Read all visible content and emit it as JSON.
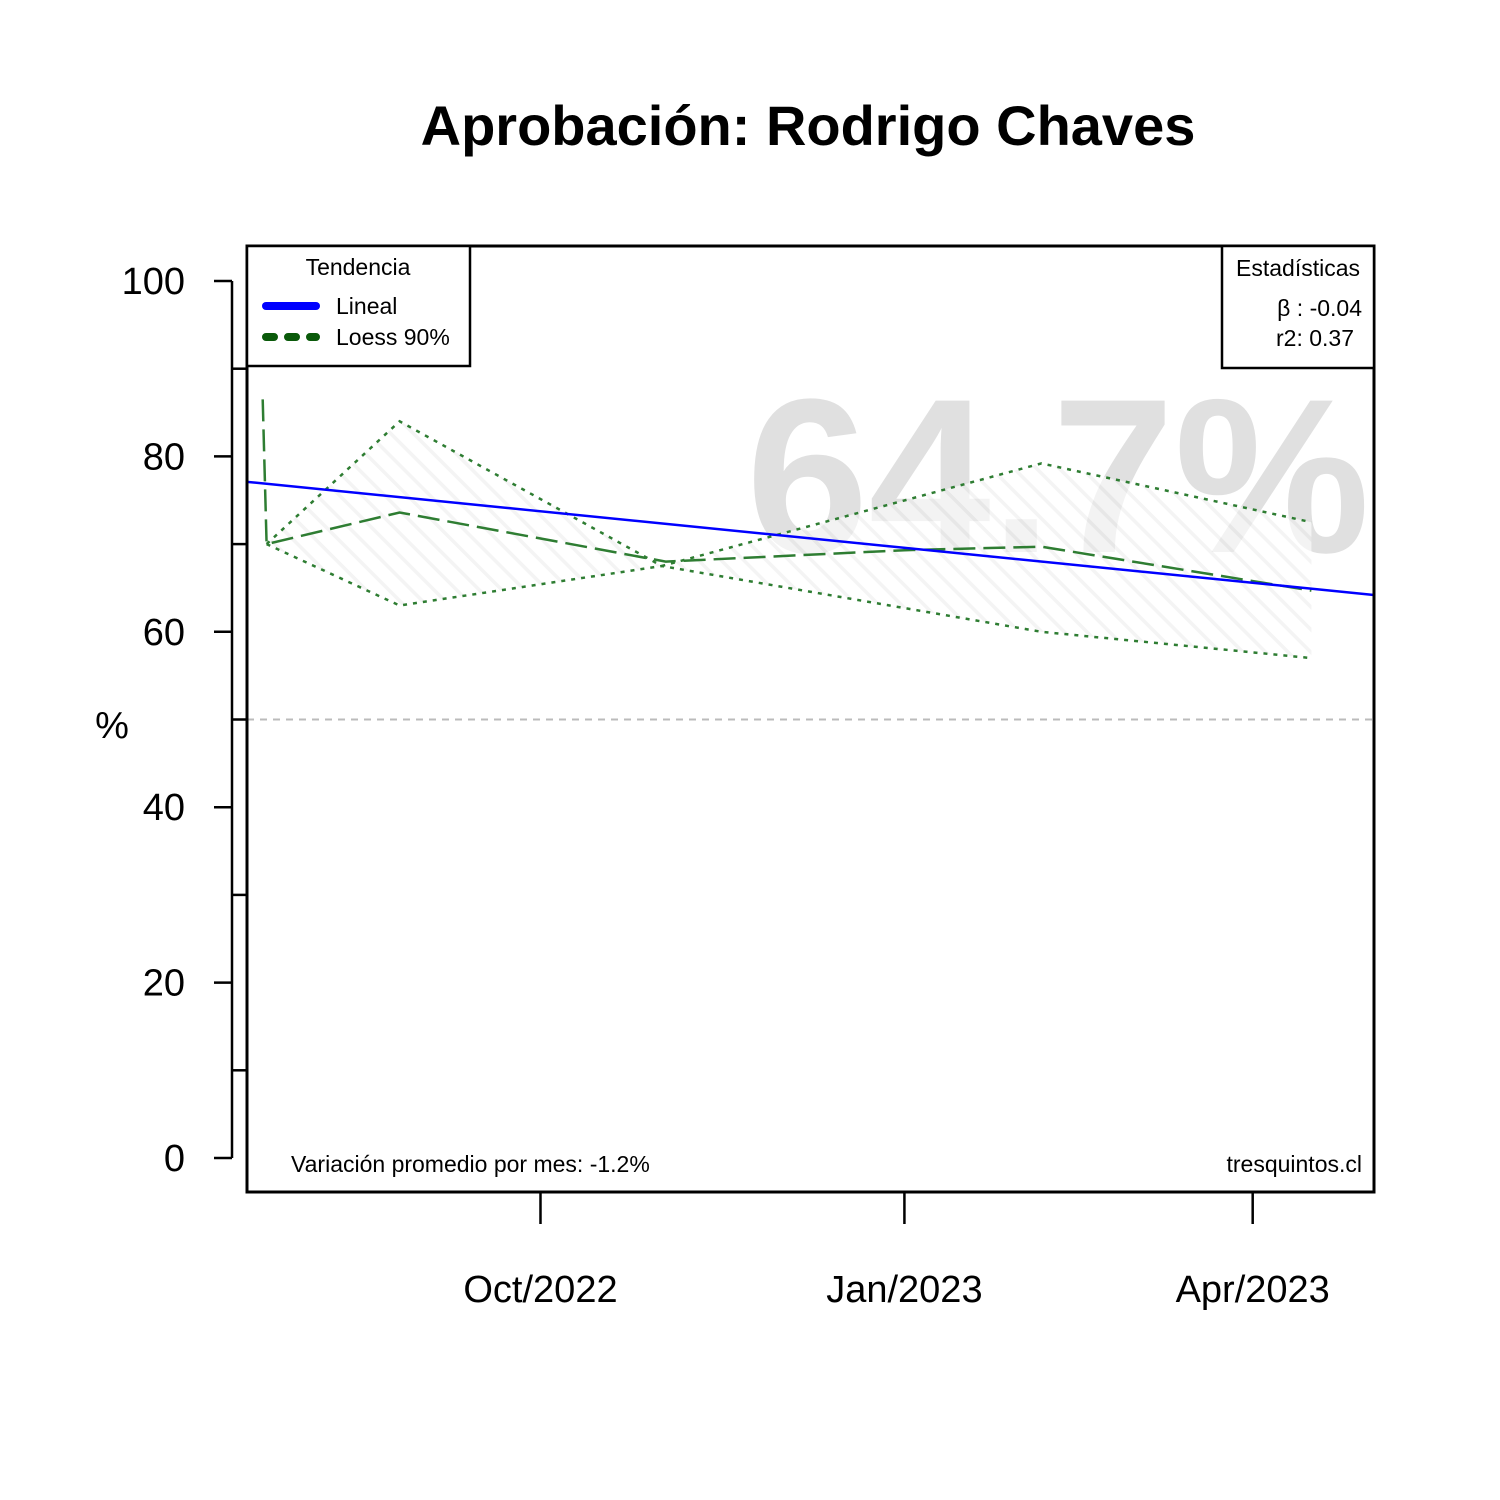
{
  "chart_data": {
    "type": "line",
    "title": "Aprobación: Rodrigo Chaves",
    "ylabel": "%",
    "xlabel": "",
    "ylim": [
      0,
      100
    ],
    "y_ticks": [
      0,
      20,
      40,
      60,
      80,
      100
    ],
    "y_tick_labels": [
      "0",
      "20",
      "40",
      "60",
      "80",
      "100"
    ],
    "x_range": [
      "2022-07-17",
      "2023-05-01"
    ],
    "x_ticks": [
      "2022-09-30",
      "2023-01-01",
      "2023-03-31"
    ],
    "x_tick_labels": [
      "Oct/2022",
      "Jan/2023",
      "Apr/2023"
    ],
    "reference_line": 50,
    "current_value_label": "64.7%",
    "legend": {
      "title": "Tendencia",
      "position": "top-left",
      "entries": [
        {
          "label": "Lineal",
          "color": "#0000ff",
          "style": "solid"
        },
        {
          "label": "Loess 90%",
          "color": "#0a5a0a",
          "style": "dashed"
        }
      ]
    },
    "stats": {
      "title": "Estadísticas",
      "position": "top-right",
      "lines": [
        "β : -0.04",
        "r2: 0.37"
      ]
    },
    "footer_left": "Variación promedio por mes: -1.2%",
    "footer_right": "tresquintos.cl",
    "series": [
      {
        "role": "linear",
        "color": "#0000ff",
        "x": [
          "2022-07-17",
          "2023-05-01"
        ],
        "y": [
          77.1,
          64.2
        ]
      },
      {
        "role": "loess",
        "color": "#2e7d32",
        "x": [
          "2022-07-21",
          "2022-07-22",
          "2022-08-25",
          "2022-11-01",
          "2023-01-01",
          "2023-02-05",
          "2023-04-15"
        ],
        "y": [
          86.5,
          70.0,
          73.6,
          68.0,
          69.3,
          69.7,
          64.7
        ]
      },
      {
        "role": "upper-band",
        "color": "#2e7d32",
        "x": [
          "2022-07-22",
          "2022-08-25",
          "2022-10-31",
          "2023-02-05",
          "2023-04-15"
        ],
        "y": [
          70.0,
          84.0,
          67.5,
          79.2,
          72.5
        ]
      },
      {
        "role": "lower-band",
        "color": "#2e7d32",
        "x": [
          "2022-07-22",
          "2022-08-25",
          "2022-10-31",
          "2023-02-05",
          "2023-04-15"
        ],
        "y": [
          70.0,
          63.0,
          67.5,
          60.0,
          57.0
        ]
      }
    ],
    "colors": {
      "linear": "#0000ff",
      "loess": "#2e7d32",
      "legend_loess": "#0a5a0a",
      "reference": "#bbbbbb",
      "watermark": "#e0e0e0"
    }
  }
}
